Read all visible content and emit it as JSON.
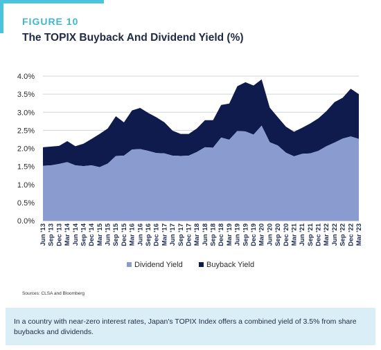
{
  "figure_label": "FIGURE 10",
  "figure_title": "The TOPIX Buyback And Dividend Yield (%)",
  "source": "Sources: CLSA and Bloomberg",
  "caption": "In a country with near-zero interest rates, Japan's TOPIX Index offers a combined yield of 3.5% from share buybacks and dividends.",
  "colors": {
    "accent": "#4cc3dd",
    "dividend": "#8a9ccf",
    "buyback": "#101b4d",
    "caption_bg": "#d9eef6"
  },
  "chart_data": {
    "type": "area",
    "stacked": true,
    "x_tick_labels": [
      "Jun '13",
      "Sep '13",
      "Dec '13",
      "Mar '14",
      "Jun '14",
      "Sep '14",
      "Dec '14",
      "Mar '15",
      "Jun '15",
      "Sep '15",
      "Dec '15",
      "Mar '16",
      "Jun '16",
      "Sep '16",
      "Dec '16",
      "Mar '17",
      "Jun '17",
      "Sep '17",
      "Dec '17",
      "Mar '18",
      "Jun '18",
      "Sep '18",
      "Dec '18",
      "Mar '19",
      "Jun '19",
      "Sep '19",
      "Dec '19",
      "Mar '20",
      "Jun '20",
      "Sep '20",
      "Dec '20",
      "Mar '21",
      "Jun '21",
      "Sep '21",
      "Dec '21",
      "Mar '22",
      "Jun '22",
      "Sep '22",
      "Dec '22",
      "Mar '23"
    ],
    "x": [
      "Jun '13",
      "Sep '13",
      "Dec '13",
      "Mar '14",
      "Jun '14",
      "Sep '14",
      "Dec '14",
      "Mar '15",
      "Jun '15",
      "Sep '15",
      "Dec '15",
      "Mar '16",
      "Jun '16",
      "Sep '16",
      "Dec '16",
      "Mar '17",
      "Jun '17",
      "Sep '17",
      "Dec '17",
      "Mar '18",
      "Jun '18",
      "Sep '18",
      "Dec '18",
      "Mar '19",
      "Jun '19",
      "Sep '19",
      "Dec '19",
      "Mar '20",
      "Jun '20",
      "Sep '20",
      "Dec '20",
      "Mar '21",
      "Jun '21",
      "Sep '21",
      "Dec '21",
      "Mar '22",
      "Jun '22",
      "Sep '22",
      "Dec '22",
      "Mar '23"
    ],
    "series": [
      {
        "name": "Dividend Yield",
        "values": [
          1.52,
          1.53,
          1.57,
          1.62,
          1.53,
          1.51,
          1.53,
          1.48,
          1.58,
          1.79,
          1.8,
          1.97,
          1.98,
          1.93,
          1.87,
          1.86,
          1.8,
          1.79,
          1.8,
          1.9,
          2.03,
          2.02,
          2.3,
          2.24,
          2.48,
          2.47,
          2.38,
          2.63,
          2.17,
          2.08,
          1.88,
          1.78,
          1.85,
          1.86,
          1.93,
          2.06,
          2.16,
          2.27,
          2.33,
          2.26
        ]
      },
      {
        "name": "Buyback Yield",
        "values": [
          0.51,
          0.52,
          0.5,
          0.58,
          0.53,
          0.62,
          0.73,
          0.92,
          0.97,
          1.1,
          0.92,
          1.08,
          1.14,
          1.05,
          0.99,
          0.86,
          0.69,
          0.61,
          0.6,
          0.65,
          0.75,
          0.76,
          0.9,
          1.0,
          1.24,
          1.36,
          1.36,
          1.28,
          0.96,
          0.78,
          0.72,
          0.68,
          0.72,
          0.83,
          0.9,
          0.97,
          1.12,
          1.13,
          1.32,
          1.24
        ]
      }
    ],
    "y_tick_labels": [
      "0.0%",
      "0.5%",
      "1.0%",
      "1.5%",
      "2.0%",
      "2.5%",
      "3.0%",
      "3.5%",
      "4.0%"
    ],
    "ylim": [
      0,
      4.0
    ],
    "legend": [
      "Dividend Yield",
      "Buyback Yield"
    ],
    "legend_position": "bottom",
    "grid": "horizontal"
  }
}
